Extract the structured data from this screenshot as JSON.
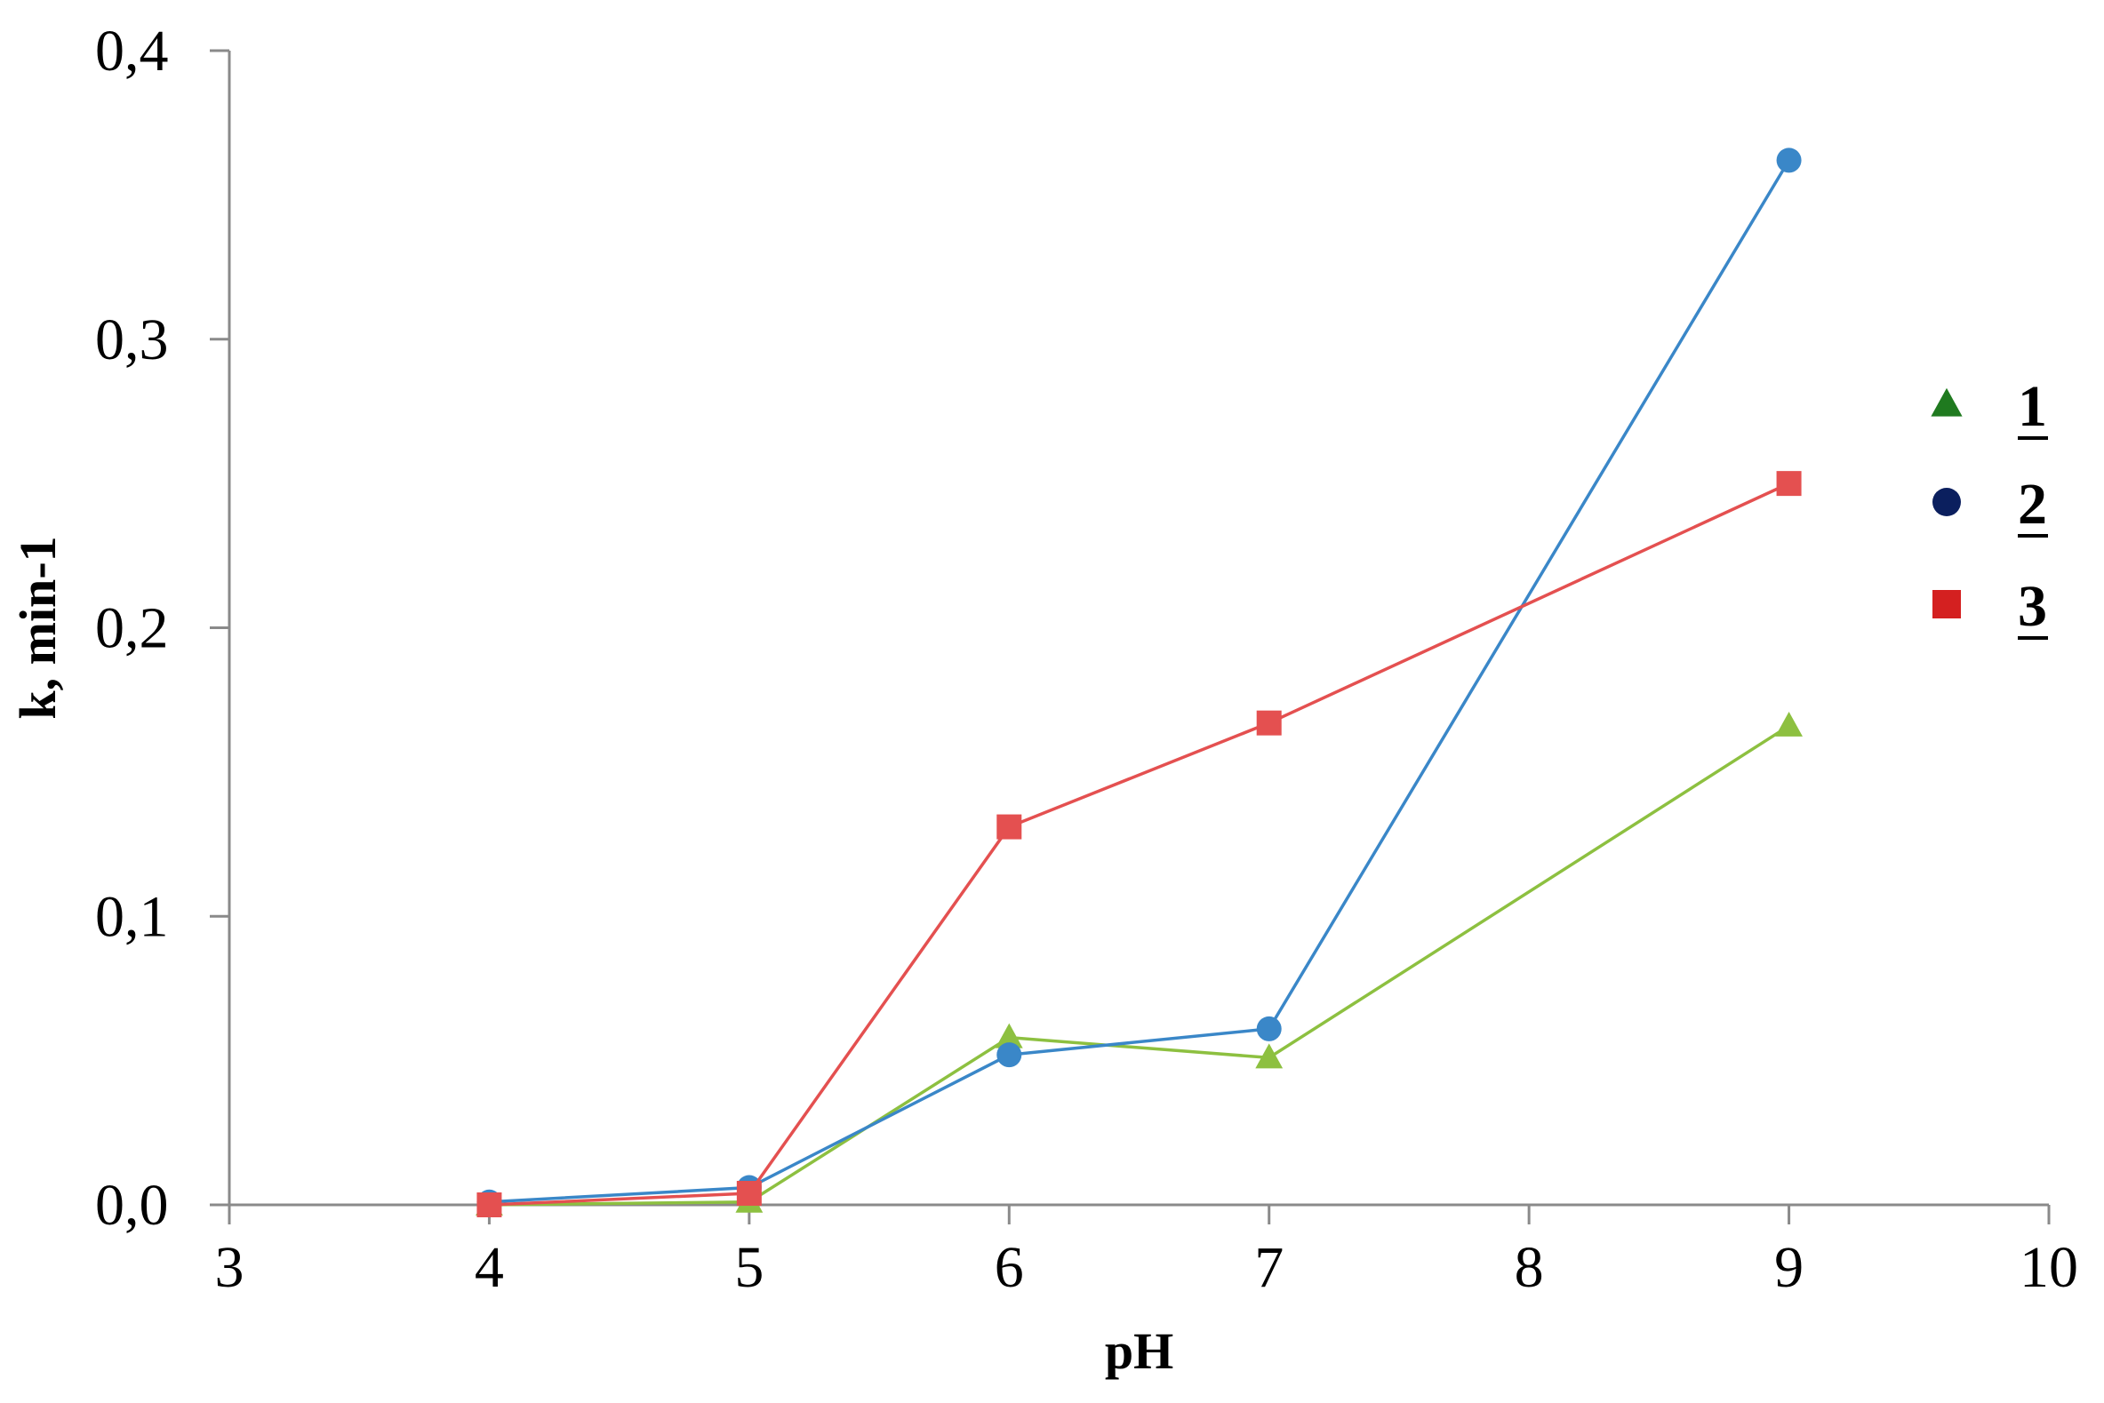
{
  "chart_data": {
    "type": "line",
    "xlabel": "pH",
    "ylabel": "k, min-1",
    "xlim": [
      3,
      10
    ],
    "ylim": [
      0.0,
      0.4
    ],
    "xticks": [
      "3",
      "4",
      "5",
      "6",
      "7",
      "8",
      "9",
      "10"
    ],
    "yticks": [
      "0,0",
      "0,1",
      "0,2",
      "0,3",
      "0,4"
    ],
    "grid": false,
    "legend_position": "right",
    "series": [
      {
        "name": "1",
        "marker": "triangle",
        "legend_color": "#1f7a1f",
        "color": "#8dc040",
        "x": [
          4,
          5,
          6,
          7,
          9
        ],
        "y": [
          0.0,
          0.001,
          0.058,
          0.051,
          0.166
        ]
      },
      {
        "name": "2",
        "marker": "circle",
        "legend_color": "#0b1f5e",
        "color": "#3a87c8",
        "x": [
          4,
          5,
          6,
          7,
          9
        ],
        "y": [
          0.001,
          0.006,
          0.052,
          0.061,
          0.362
        ]
      },
      {
        "name": "3",
        "marker": "square",
        "legend_color": "#d42020",
        "color": "#e45050",
        "x": [
          4,
          5,
          6,
          7,
          9
        ],
        "y": [
          0.0,
          0.004,
          0.131,
          0.167,
          0.25
        ]
      }
    ]
  }
}
